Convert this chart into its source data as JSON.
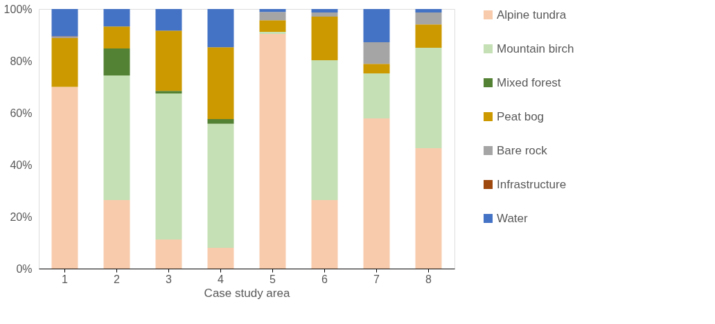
{
  "chart_data": {
    "type": "bar",
    "stacked": true,
    "xlabel": "Case study area",
    "categories": [
      "1",
      "2",
      "3",
      "4",
      "5",
      "6",
      "7",
      "8"
    ],
    "ylim": [
      0,
      100
    ],
    "yticks": [
      {
        "value": 0,
        "label": "0%"
      },
      {
        "value": 20,
        "label": "20%"
      },
      {
        "value": 40,
        "label": "40%"
      },
      {
        "value": 60,
        "label": "60%"
      },
      {
        "value": 80,
        "label": "80%"
      },
      {
        "value": 100,
        "label": "100%"
      }
    ],
    "grid": false,
    "legend": "right",
    "series": [
      {
        "name": "Alpine tundra",
        "color": "#f8cbad",
        "values": [
          70,
          26.4,
          11.2,
          8.0,
          90.4,
          26.4,
          57.9,
          46.4
        ]
      },
      {
        "name": "Mountain birch",
        "color": "#c5e0b4",
        "values": [
          0,
          48,
          56.3,
          47.8,
          0.8,
          53.9,
          17.3,
          38.7
        ]
      },
      {
        "name": "Mixed forest",
        "color": "#548235",
        "values": [
          0,
          10.4,
          1.0,
          1.8,
          0,
          0,
          0,
          0
        ]
      },
      {
        "name": "Peat bog",
        "color": "#cc9900",
        "values": [
          18.8,
          8.5,
          23.2,
          27.7,
          4.5,
          16.8,
          3.7,
          9.0
        ]
      },
      {
        "name": "Bare rock",
        "color": "#a5a5a5",
        "values": [
          0.5,
          0,
          0,
          0,
          3.2,
          1.6,
          8.3,
          4.6
        ]
      },
      {
        "name": "Infrastructure",
        "color": "#9e480e",
        "values": [
          0.2,
          0,
          0,
          0,
          0,
          0,
          0,
          0
        ]
      },
      {
        "name": "Water",
        "color": "#4472c4",
        "values": [
          10.5,
          6.7,
          8.3,
          14.7,
          1.1,
          1.3,
          12.8,
          1.3
        ]
      }
    ]
  }
}
